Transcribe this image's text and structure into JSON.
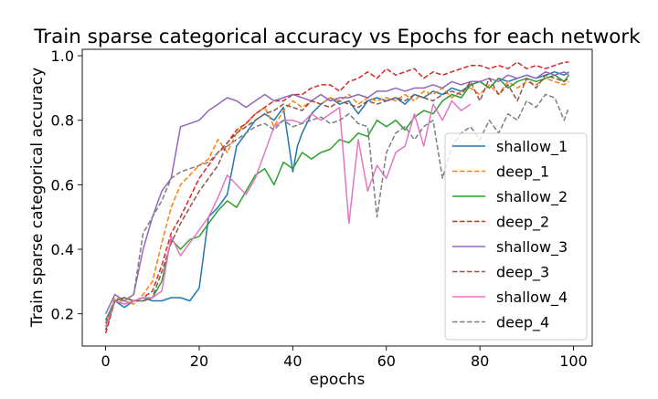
{
  "chart_data": {
    "type": "line",
    "title": "Train sparse categorical accuracy vs Epochs for each network",
    "xlabel": "epochs",
    "ylabel": "Train sparse categorical accuracy",
    "xlim": [
      -5,
      104
    ],
    "ylim": [
      0.1,
      1.02
    ],
    "xticks": [
      0,
      20,
      40,
      60,
      80,
      100
    ],
    "xtick_labels": [
      "0",
      "20",
      "40",
      "60",
      "80",
      "100"
    ],
    "yticks": [
      0.2,
      0.4,
      0.6,
      0.8,
      1.0
    ],
    "ytick_labels": [
      "0.2",
      "0.4",
      "0.6",
      "0.8",
      "1.0"
    ],
    "grid": false,
    "legend_position": "center-right",
    "series": [
      {
        "name": "shallow_1",
        "color": "#1f77b4",
        "dash": "solid",
        "x": [
          0,
          2,
          4,
          6,
          8,
          10,
          12,
          14,
          16,
          18,
          20,
          22,
          24,
          26,
          28,
          30,
          32,
          34,
          36,
          38,
          40,
          41,
          42,
          44,
          46,
          48,
          50,
          52,
          54,
          56,
          58,
          60,
          62,
          64,
          66,
          68,
          70,
          72,
          74,
          76,
          78,
          80,
          82,
          84,
          86,
          88,
          90,
          92,
          94,
          96,
          98,
          99
        ],
        "y": [
          0.18,
          0.24,
          0.22,
          0.24,
          0.25,
          0.24,
          0.24,
          0.25,
          0.25,
          0.24,
          0.28,
          0.5,
          0.53,
          0.57,
          0.72,
          0.76,
          0.8,
          0.82,
          0.8,
          0.84,
          0.64,
          0.72,
          0.76,
          0.82,
          0.85,
          0.87,
          0.85,
          0.86,
          0.82,
          0.86,
          0.87,
          0.86,
          0.87,
          0.85,
          0.88,
          0.87,
          0.89,
          0.88,
          0.9,
          0.89,
          0.91,
          0.92,
          0.9,
          0.93,
          0.92,
          0.93,
          0.94,
          0.93,
          0.94,
          0.95,
          0.94,
          0.95
        ]
      },
      {
        "name": "deep_1",
        "color": "#ff7f0e",
        "dash": "dashed",
        "x": [
          0,
          2,
          4,
          6,
          8,
          10,
          12,
          14,
          16,
          18,
          20,
          22,
          24,
          26,
          28,
          30,
          32,
          34,
          36,
          38,
          40,
          42,
          44,
          46,
          48,
          50,
          52,
          54,
          56,
          58,
          60,
          62,
          64,
          66,
          68,
          70,
          72,
          74,
          76,
          78,
          80,
          82,
          84,
          86,
          88,
          90,
          92,
          94,
          96,
          98,
          99
        ],
        "y": [
          0.17,
          0.25,
          0.24,
          0.23,
          0.26,
          0.3,
          0.42,
          0.53,
          0.6,
          0.63,
          0.66,
          0.68,
          0.74,
          0.7,
          0.76,
          0.79,
          0.82,
          0.84,
          0.78,
          0.83,
          0.86,
          0.84,
          0.86,
          0.85,
          0.87,
          0.86,
          0.88,
          0.85,
          0.87,
          0.86,
          0.87,
          0.86,
          0.88,
          0.86,
          0.89,
          0.88,
          0.9,
          0.87,
          0.89,
          0.9,
          0.88,
          0.91,
          0.88,
          0.92,
          0.9,
          0.92,
          0.91,
          0.93,
          0.92,
          0.91,
          0.92
        ]
      },
      {
        "name": "shallow_2",
        "color": "#2ca02c",
        "dash": "solid",
        "x": [
          0,
          2,
          4,
          6,
          8,
          10,
          12,
          14,
          16,
          18,
          20,
          22,
          24,
          26,
          28,
          30,
          32,
          34,
          36,
          38,
          40,
          42,
          44,
          46,
          48,
          50,
          52,
          54,
          56,
          58,
          60,
          62,
          64,
          66,
          68,
          70,
          72,
          74,
          76,
          78,
          80,
          82,
          84,
          86,
          88,
          90,
          92,
          94,
          96,
          98,
          99
        ],
        "y": [
          0.18,
          0.24,
          0.25,
          0.24,
          0.24,
          0.25,
          0.3,
          0.43,
          0.4,
          0.43,
          0.44,
          0.48,
          0.52,
          0.55,
          0.53,
          0.58,
          0.63,
          0.65,
          0.6,
          0.67,
          0.65,
          0.7,
          0.68,
          0.7,
          0.71,
          0.74,
          0.73,
          0.76,
          0.75,
          0.8,
          0.78,
          0.8,
          0.77,
          0.81,
          0.83,
          0.82,
          0.86,
          0.88,
          0.87,
          0.91,
          0.92,
          0.9,
          0.93,
          0.9,
          0.92,
          0.93,
          0.92,
          0.93,
          0.94,
          0.92,
          0.94
        ]
      },
      {
        "name": "deep_2",
        "color": "#d62728",
        "dash": "dashed",
        "x": [
          0,
          2,
          4,
          6,
          8,
          10,
          12,
          14,
          16,
          18,
          20,
          22,
          24,
          26,
          28,
          30,
          32,
          34,
          36,
          38,
          40,
          42,
          44,
          46,
          48,
          50,
          52,
          54,
          56,
          58,
          60,
          62,
          64,
          66,
          68,
          70,
          72,
          74,
          76,
          78,
          80,
          82,
          84,
          86,
          88,
          90,
          92,
          94,
          96,
          98,
          99
        ],
        "y": [
          0.14,
          0.24,
          0.23,
          0.24,
          0.25,
          0.27,
          0.35,
          0.45,
          0.5,
          0.56,
          0.62,
          0.66,
          0.7,
          0.73,
          0.77,
          0.79,
          0.82,
          0.84,
          0.86,
          0.86,
          0.88,
          0.88,
          0.9,
          0.91,
          0.91,
          0.89,
          0.92,
          0.93,
          0.95,
          0.93,
          0.96,
          0.94,
          0.95,
          0.96,
          0.93,
          0.95,
          0.94,
          0.95,
          0.96,
          0.97,
          0.97,
          0.96,
          0.97,
          0.96,
          0.98,
          0.96,
          0.97,
          0.96,
          0.97,
          0.98,
          0.98
        ]
      },
      {
        "name": "shallow_3",
        "color": "#9467bd",
        "dash": "solid",
        "x": [
          0,
          2,
          4,
          6,
          8,
          10,
          12,
          14,
          16,
          18,
          20,
          22,
          24,
          26,
          28,
          30,
          32,
          34,
          36,
          38,
          40,
          42,
          44,
          46,
          48,
          50,
          52,
          54,
          56,
          58,
          60,
          62,
          64,
          66,
          68,
          70,
          72,
          74,
          76,
          78,
          80,
          82,
          84,
          86,
          88,
          90,
          92,
          94,
          96,
          98,
          99
        ],
        "y": [
          0.2,
          0.26,
          0.24,
          0.26,
          0.4,
          0.5,
          0.58,
          0.62,
          0.78,
          0.79,
          0.8,
          0.83,
          0.85,
          0.87,
          0.86,
          0.84,
          0.86,
          0.88,
          0.86,
          0.87,
          0.88,
          0.87,
          0.86,
          0.88,
          0.86,
          0.87,
          0.87,
          0.88,
          0.87,
          0.89,
          0.89,
          0.9,
          0.89,
          0.9,
          0.9,
          0.91,
          0.9,
          0.92,
          0.91,
          0.92,
          0.92,
          0.93,
          0.92,
          0.94,
          0.93,
          0.94,
          0.93,
          0.95,
          0.94,
          0.95,
          0.94
        ]
      },
      {
        "name": "deep_3",
        "color": "#8c564b",
        "dash": "dashed",
        "x": [
          0,
          2,
          4,
          6,
          8,
          10,
          12,
          14,
          16,
          18,
          20,
          22,
          24,
          26,
          28,
          30,
          32,
          34,
          36,
          38,
          40,
          42,
          44,
          46,
          48,
          50,
          52,
          54,
          56,
          58,
          60,
          62,
          64,
          66,
          68,
          70,
          72,
          74,
          76,
          78,
          80,
          82,
          84,
          86,
          88,
          90,
          92,
          94,
          96,
          98,
          99
        ],
        "y": [
          0.15,
          0.24,
          0.25,
          0.24,
          0.24,
          0.25,
          0.33,
          0.42,
          0.48,
          0.53,
          0.58,
          0.62,
          0.66,
          0.73,
          0.76,
          0.78,
          0.8,
          0.82,
          0.83,
          0.85,
          0.84,
          0.83,
          0.86,
          0.85,
          0.84,
          0.86,
          0.85,
          0.84,
          0.86,
          0.85,
          0.86,
          0.87,
          0.86,
          0.88,
          0.87,
          0.86,
          0.88,
          0.89,
          0.88,
          0.92,
          0.86,
          0.93,
          0.88,
          0.91,
          0.86,
          0.93,
          0.9,
          0.94,
          0.93,
          0.92,
          0.93
        ]
      },
      {
        "name": "shallow_4",
        "color": "#e377c2",
        "dash": "solid",
        "x": [
          0,
          2,
          4,
          6,
          8,
          10,
          12,
          14,
          16,
          18,
          20,
          22,
          24,
          26,
          28,
          30,
          32,
          34,
          36,
          38,
          40,
          42,
          44,
          46,
          48,
          50,
          52,
          54,
          56,
          58,
          60,
          62,
          64,
          66,
          68,
          70,
          72,
          74,
          76,
          78
        ],
        "y": [
          0.16,
          0.24,
          0.23,
          0.24,
          0.25,
          0.25,
          0.27,
          0.44,
          0.38,
          0.42,
          0.46,
          0.5,
          0.56,
          0.63,
          0.6,
          0.57,
          0.62,
          0.7,
          0.78,
          0.8,
          0.8,
          0.79,
          0.82,
          0.8,
          0.82,
          0.84,
          0.48,
          0.74,
          0.58,
          0.66,
          0.62,
          0.7,
          0.72,
          0.82,
          0.72,
          0.85,
          0.8,
          0.86,
          0.83,
          0.85
        ]
      },
      {
        "name": "deep_4",
        "color": "#7f7f7f",
        "dash": "dashed",
        "x": [
          0,
          2,
          4,
          6,
          8,
          10,
          12,
          14,
          16,
          18,
          20,
          22,
          24,
          26,
          28,
          30,
          32,
          34,
          36,
          38,
          40,
          42,
          44,
          46,
          48,
          50,
          52,
          54,
          56,
          58,
          60,
          62,
          64,
          66,
          68,
          70,
          72,
          74,
          76,
          78,
          80,
          82,
          84,
          86,
          88,
          90,
          92,
          94,
          96,
          98,
          99
        ],
        "y": [
          0.17,
          0.24,
          0.24,
          0.26,
          0.45,
          0.5,
          0.55,
          0.62,
          0.64,
          0.65,
          0.66,
          0.67,
          0.7,
          0.72,
          0.74,
          0.76,
          0.78,
          0.79,
          0.77,
          0.8,
          0.78,
          0.79,
          0.8,
          0.81,
          0.79,
          0.8,
          0.82,
          0.79,
          0.78,
          0.5,
          0.7,
          0.76,
          0.78,
          0.74,
          0.78,
          0.8,
          0.62,
          0.72,
          0.76,
          0.78,
          0.74,
          0.8,
          0.76,
          0.82,
          0.8,
          0.86,
          0.84,
          0.88,
          0.87,
          0.8,
          0.84
        ]
      }
    ]
  }
}
